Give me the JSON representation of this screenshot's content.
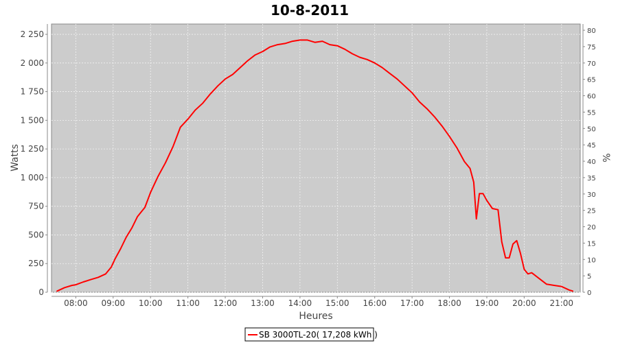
{
  "chart_data": {
    "type": "line",
    "title": "10-8-2011",
    "xlabel": "Heures",
    "ylabel": "Watts",
    "y2label": "%",
    "xlim": [
      7.35,
      21.5
    ],
    "ylim": [
      0,
      2340
    ],
    "y2lim": [
      0,
      81.9
    ],
    "x_ticks": [
      {
        "v": 8,
        "label": "08:00"
      },
      {
        "v": 9,
        "label": "09:00"
      },
      {
        "v": 10,
        "label": "10:00"
      },
      {
        "v": 11,
        "label": "11:00"
      },
      {
        "v": 12,
        "label": "12:00"
      },
      {
        "v": 13,
        "label": "13:00"
      },
      {
        "v": 14,
        "label": "14:00"
      },
      {
        "v": 15,
        "label": "15:00"
      },
      {
        "v": 16,
        "label": "16:00"
      },
      {
        "v": 17,
        "label": "17:00"
      },
      {
        "v": 18,
        "label": "18:00"
      },
      {
        "v": 19,
        "label": "19:00"
      },
      {
        "v": 20,
        "label": "20:00"
      },
      {
        "v": 21,
        "label": "21:00"
      }
    ],
    "y_ticks": [
      {
        "v": 0,
        "label": "0"
      },
      {
        "v": 250,
        "label": "250"
      },
      {
        "v": 500,
        "label": "500"
      },
      {
        "v": 750,
        "label": "750"
      },
      {
        "v": 1000,
        "label": "1 000"
      },
      {
        "v": 1250,
        "label": "1 250"
      },
      {
        "v": 1500,
        "label": "1 500"
      },
      {
        "v": 1750,
        "label": "1 750"
      },
      {
        "v": 2000,
        "label": "2 000"
      },
      {
        "v": 2250,
        "label": "2 250"
      }
    ],
    "y2_ticks": [
      0,
      5,
      10,
      15,
      20,
      25,
      30,
      35,
      40,
      45,
      50,
      55,
      60,
      65,
      70,
      75,
      80
    ],
    "grid": true,
    "legend_position": "bottom",
    "series": [
      {
        "name": "SB 3000TL-20( 17,208 kWh  )",
        "color": "#ff0000",
        "x": [
          7.5,
          7.7,
          7.9,
          8.0,
          8.2,
          8.4,
          8.6,
          8.8,
          8.95,
          9.05,
          9.2,
          9.35,
          9.5,
          9.65,
          9.75,
          9.85,
          10.0,
          10.2,
          10.4,
          10.6,
          10.8,
          11.0,
          11.2,
          11.4,
          11.6,
          11.8,
          12.0,
          12.2,
          12.4,
          12.6,
          12.8,
          13.0,
          13.2,
          13.4,
          13.6,
          13.8,
          14.0,
          14.2,
          14.4,
          14.6,
          14.8,
          15.0,
          15.2,
          15.4,
          15.6,
          15.8,
          16.0,
          16.2,
          16.4,
          16.6,
          16.8,
          17.0,
          17.2,
          17.4,
          17.6,
          17.8,
          18.0,
          18.2,
          18.4,
          18.55,
          18.65,
          18.72,
          18.8,
          18.9,
          19.0,
          19.15,
          19.3,
          19.4,
          19.5,
          19.6,
          19.7,
          19.8,
          19.9,
          20.0,
          20.1,
          20.2,
          20.4,
          20.6,
          20.8,
          21.0,
          21.2,
          21.3
        ],
        "y": [
          10,
          40,
          60,
          65,
          90,
          110,
          130,
          160,
          220,
          290,
          380,
          480,
          560,
          660,
          700,
          740,
          870,
          1010,
          1130,
          1270,
          1440,
          1510,
          1590,
          1650,
          1730,
          1800,
          1860,
          1900,
          1960,
          2020,
          2070,
          2100,
          2140,
          2160,
          2170,
          2190,
          2200,
          2200,
          2180,
          2190,
          2160,
          2150,
          2120,
          2080,
          2050,
          2030,
          2000,
          1960,
          1910,
          1860,
          1800,
          1740,
          1660,
          1600,
          1530,
          1450,
          1360,
          1260,
          1140,
          1080,
          960,
          640,
          860,
          860,
          800,
          730,
          720,
          440,
          300,
          300,
          420,
          450,
          340,
          200,
          160,
          170,
          120,
          70,
          60,
          50,
          20,
          10
        ]
      }
    ]
  }
}
